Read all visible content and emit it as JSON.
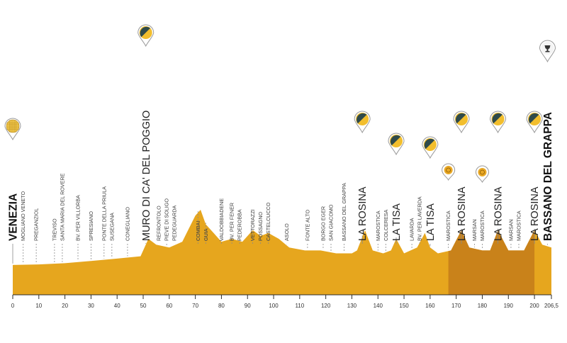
{
  "chart_data": {
    "type": "area",
    "xlim": [
      0,
      206.5
    ],
    "xticks": [
      "0",
      "10",
      "20",
      "30",
      "40",
      "50",
      "60",
      "70",
      "80",
      "90",
      "100",
      "110",
      "120",
      "130",
      "140",
      "150",
      "160",
      "170",
      "180",
      "190",
      "200",
      "206,5"
    ],
    "colors": {
      "profile_fill": "#e6a61e",
      "circuit_fill": "#c9821a",
      "line": "#2b2b2b",
      "marker_stroke": "#8a8a8a",
      "climb_icon_dark": "#2f4a4a",
      "climb_icon_light": "#f2be2d",
      "sprint_icon": "#e9a825"
    },
    "elevation_profile": [
      {
        "km": 0,
        "h": 1
      },
      {
        "km": 10,
        "h": 1.2
      },
      {
        "km": 20,
        "h": 1.6
      },
      {
        "km": 30,
        "h": 2.4
      },
      {
        "km": 40,
        "h": 3.2
      },
      {
        "km": 49,
        "h": 4
      },
      {
        "km": 52,
        "h": 10
      },
      {
        "km": 55,
        "h": 8
      },
      {
        "km": 60,
        "h": 7
      },
      {
        "km": 65,
        "h": 9
      },
      {
        "km": 70,
        "h": 18
      },
      {
        "km": 72,
        "h": 20
      },
      {
        "km": 74,
        "h": 15
      },
      {
        "km": 77,
        "h": 12
      },
      {
        "km": 80,
        "h": 9
      },
      {
        "km": 84,
        "h": 10
      },
      {
        "km": 88,
        "h": 9
      },
      {
        "km": 92,
        "h": 13
      },
      {
        "km": 95,
        "h": 11
      },
      {
        "km": 98,
        "h": 12
      },
      {
        "km": 102,
        "h": 10
      },
      {
        "km": 106,
        "h": 7
      },
      {
        "km": 112,
        "h": 6
      },
      {
        "km": 118,
        "h": 6
      },
      {
        "km": 124,
        "h": 5
      },
      {
        "km": 130,
        "h": 5
      },
      {
        "km": 132,
        "h": 6
      },
      {
        "km": 135,
        "h": 13
      },
      {
        "km": 138,
        "h": 6
      },
      {
        "km": 142,
        "h": 5
      },
      {
        "km": 145,
        "h": 6
      },
      {
        "km": 147,
        "h": 10
      },
      {
        "km": 150,
        "h": 5
      },
      {
        "km": 155,
        "h": 7
      },
      {
        "km": 158,
        "h": 12
      },
      {
        "km": 160,
        "h": 7
      },
      {
        "km": 163,
        "h": 5
      },
      {
        "km": 168,
        "h": 6
      },
      {
        "km": 172,
        "h": 13
      },
      {
        "km": 175,
        "h": 7
      },
      {
        "km": 180,
        "h": 6
      },
      {
        "km": 183,
        "h": 6
      },
      {
        "km": 186,
        "h": 13
      },
      {
        "km": 190,
        "h": 6
      },
      {
        "km": 196,
        "h": 6
      },
      {
        "km": 200,
        "h": 13
      },
      {
        "km": 203,
        "h": 8
      },
      {
        "km": 206.5,
        "h": 7
      }
    ],
    "circuit_range": [
      167,
      200
    ],
    "places": [
      {
        "km": 0,
        "label": "VENEZIA",
        "style": "finish"
      },
      {
        "km": 4,
        "label": "MOGLIANO VENETO",
        "style": "small"
      },
      {
        "km": 9,
        "label": "PREGANZIOL",
        "style": "small"
      },
      {
        "km": 16,
        "label": "TREVISO",
        "style": "small"
      },
      {
        "km": 19,
        "label": "SANTA MARIA DEL ROVERE",
        "style": "small"
      },
      {
        "km": 25,
        "label": "BV. PER VILLORBA",
        "style": "small"
      },
      {
        "km": 30,
        "label": "SPRESIANO",
        "style": "small"
      },
      {
        "km": 35,
        "label": "PONTE DELLA PRIULA",
        "style": "small"
      },
      {
        "km": 38,
        "label": "SUSEGANA",
        "style": "small"
      },
      {
        "km": 44,
        "label": "CONEGLIANO",
        "style": "small"
      },
      {
        "km": 51,
        "label": "MURO DI CA' DEL POGGIO",
        "style": "climb"
      },
      {
        "km": 56,
        "label": "REFRONTOLO",
        "style": "small"
      },
      {
        "km": 59,
        "label": "PIEVE DI SOLIGO",
        "style": "small"
      },
      {
        "km": 62,
        "label": "PEDEGUARDA",
        "style": "small"
      },
      {
        "km": 71,
        "label": "COMBAI",
        "style": "small"
      },
      {
        "km": 74,
        "label": "GUIA",
        "style": "small"
      },
      {
        "km": 80,
        "label": "VALDOBBIADENE",
        "style": "small"
      },
      {
        "km": 84,
        "label": "BV. PER FENER",
        "style": "small"
      },
      {
        "km": 87,
        "label": "PEDEROBBA",
        "style": "small"
      },
      {
        "km": 92,
        "label": "VETTORAZZI",
        "style": "small"
      },
      {
        "km": 95,
        "label": "POSSAGNO",
        "style": "small"
      },
      {
        "km": 98,
        "label": "CASTELCUCCO",
        "style": "small"
      },
      {
        "km": 105,
        "label": "ASOLO",
        "style": "small"
      },
      {
        "km": 113,
        "label": "FONTE ALTO",
        "style": "small"
      },
      {
        "km": 119,
        "label": "BORGO EGER",
        "style": "small"
      },
      {
        "km": 122,
        "label": "SAN GIACOMO",
        "style": "small"
      },
      {
        "km": 127,
        "label": "BASSANO DEL GRAPPA",
        "style": "small"
      },
      {
        "km": 134,
        "label": "LA ROSINA",
        "style": "climb"
      },
      {
        "km": 140,
        "label": "MAROSTICA",
        "style": "small"
      },
      {
        "km": 143,
        "label": "COLCERESA",
        "style": "small"
      },
      {
        "km": 147,
        "label": "LA TISA",
        "style": "climb"
      },
      {
        "km": 153,
        "label": "LAVARDA",
        "style": "small"
      },
      {
        "km": 156,
        "label": "BV. PER LAVERDA",
        "style": "small"
      },
      {
        "km": 160,
        "label": "LA TISA",
        "style": "climb"
      },
      {
        "km": 167,
        "label": "MAROSTICA",
        "style": "small"
      },
      {
        "km": 172,
        "label": "LA ROSINA",
        "style": "climb"
      },
      {
        "km": 177,
        "label": "MARSAN",
        "style": "small"
      },
      {
        "km": 180,
        "label": "MAROSTICA",
        "style": "small"
      },
      {
        "km": 186,
        "label": "LA ROSINA",
        "style": "climb"
      },
      {
        "km": 191,
        "label": "MARSAN",
        "style": "small"
      },
      {
        "km": 194,
        "label": "MAROSTICA",
        "style": "small"
      },
      {
        "km": 200,
        "label": "LA ROSINA",
        "style": "climb"
      },
      {
        "km": 205,
        "label": "BASSANO DEL GRAPPA",
        "style": "finish"
      }
    ],
    "pins": [
      {
        "km": 0,
        "kind": "start"
      },
      {
        "km": 51,
        "kind": "climb"
      },
      {
        "km": 134,
        "kind": "climb"
      },
      {
        "km": 147,
        "kind": "climb"
      },
      {
        "km": 160,
        "kind": "climb"
      },
      {
        "km": 172,
        "kind": "climb"
      },
      {
        "km": 186,
        "kind": "climb"
      },
      {
        "km": 200,
        "kind": "climb"
      },
      {
        "km": 205,
        "kind": "finish"
      }
    ],
    "sprints": [
      {
        "km": 167
      },
      {
        "km": 180
      }
    ]
  }
}
